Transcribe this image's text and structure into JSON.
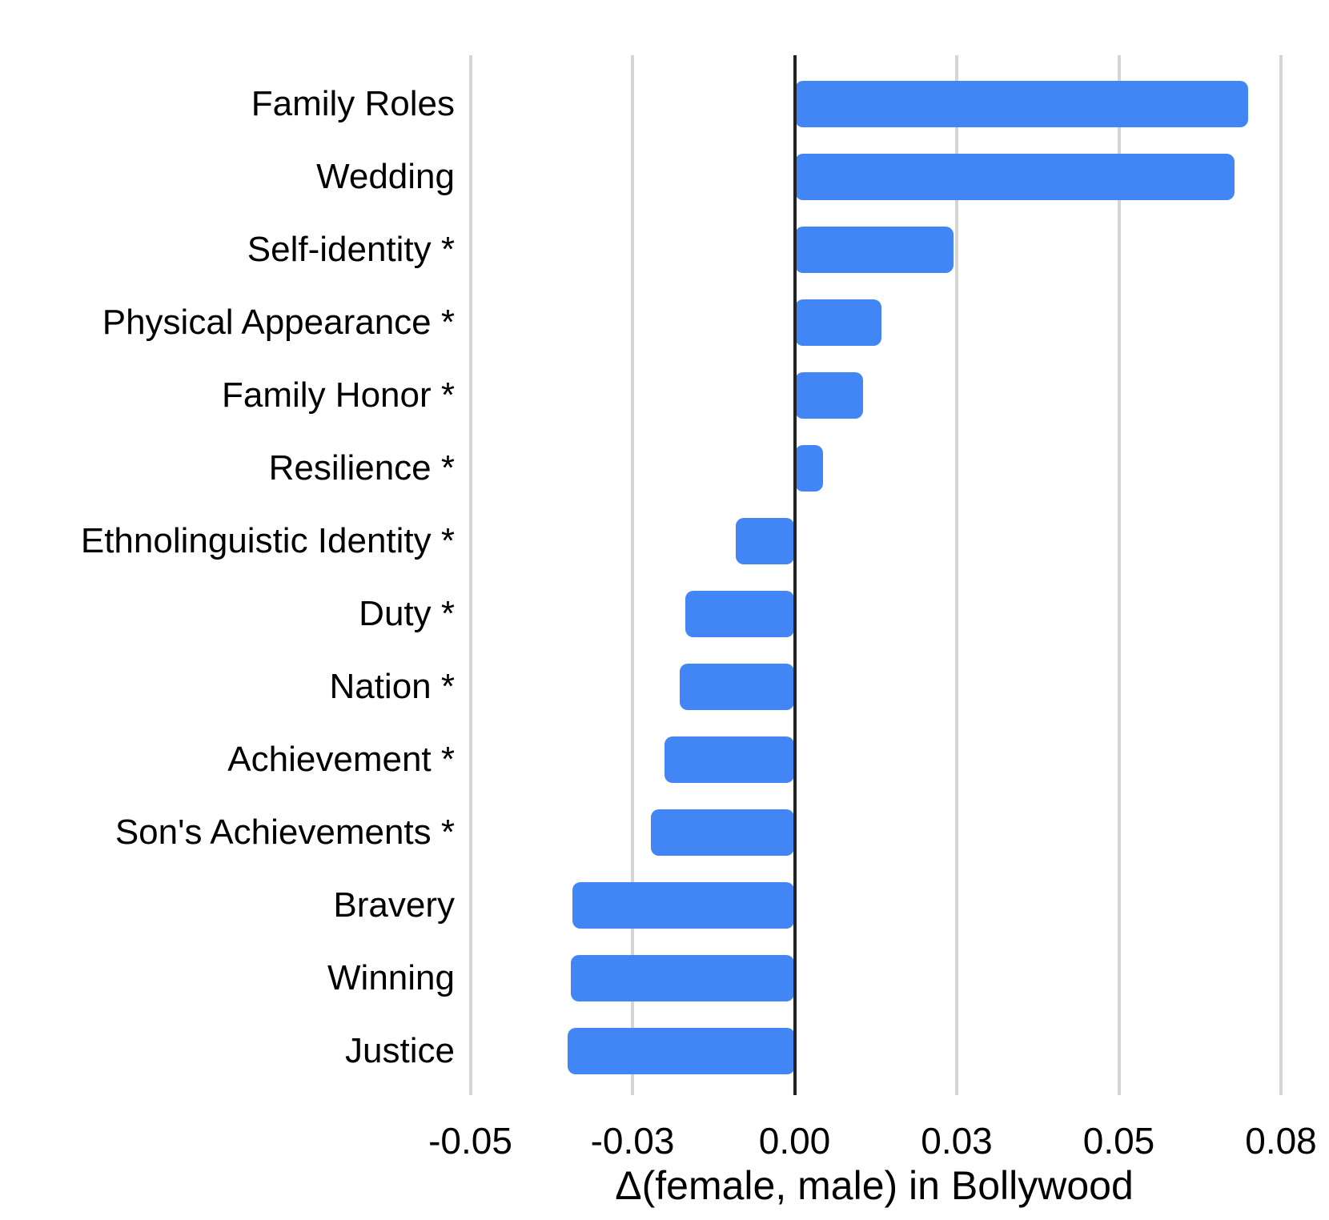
{
  "chart_data": {
    "type": "bar",
    "orientation": "horizontal",
    "title": "",
    "xlabel": "Δ(female, male) in Bollywood",
    "ylabel": "",
    "categories": [
      "Family Roles",
      "Wedding",
      "Self-identity *",
      "Physical Appearance *",
      "Family Honor *",
      "Resilience *",
      "Ethnolinguistic Identity *",
      "Duty *",
      "Nation *",
      "Achievement *",
      "Son's Achievements *",
      "Bravery",
      "Winning",
      "Justice"
    ],
    "values": [
      0.0699,
      0.0679,
      0.0245,
      0.0134,
      0.0105,
      0.0044,
      -0.0091,
      -0.0168,
      -0.0177,
      -0.0201,
      -0.0221,
      -0.0343,
      -0.0345,
      -0.035
    ],
    "xticks": [
      {
        "value": -0.05,
        "label": "-0.05"
      },
      {
        "value": -0.025,
        "label": "-0.03"
      },
      {
        "value": 0,
        "label": "0.00"
      },
      {
        "value": 0.025,
        "label": "0.03"
      },
      {
        "value": 0.05,
        "label": "0.05"
      },
      {
        "value": 0.075,
        "label": "0.08"
      }
    ],
    "xlim": [
      -0.0557,
      0.0826
    ],
    "grid": "vertical",
    "legend_position": "none",
    "bar_color": "#4285f4",
    "gridline_color": "#d5d5d5",
    "zero_line_color": "#222222",
    "text_color": "#000000",
    "background_color": "#ffffff"
  }
}
